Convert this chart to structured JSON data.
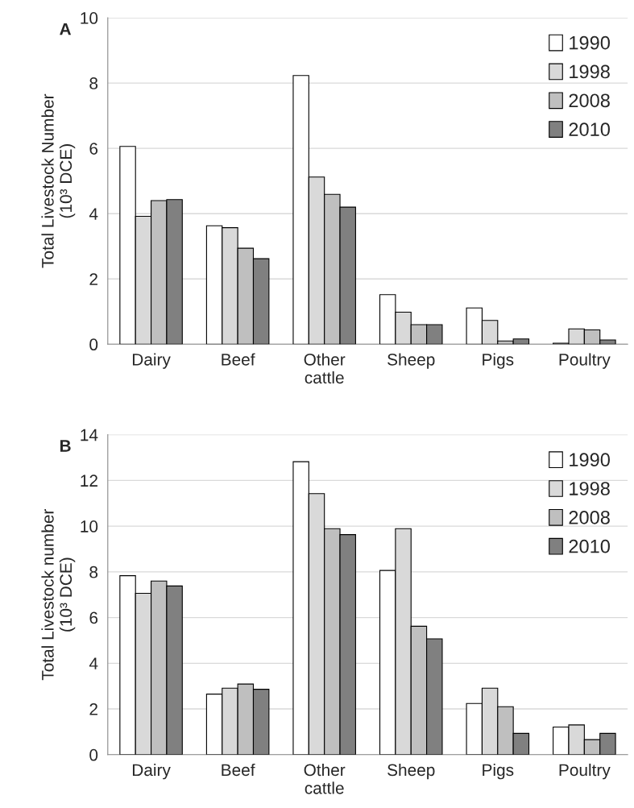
{
  "chart_data": [
    {
      "type": "bar",
      "title": "A",
      "ylabel": "Total Livestock Number\n(10³ DCE)",
      "categories": [
        "Dairy",
        "Beef",
        "Other\ncattle",
        "Sheep",
        "Pigs",
        "Poultry"
      ],
      "series": [
        {
          "name": "1990",
          "color": "#ffffff",
          "values": [
            6.06,
            3.63,
            8.23,
            1.52,
            1.11,
            0.03
          ]
        },
        {
          "name": "1998",
          "color": "#d9d9d9",
          "values": [
            3.92,
            3.57,
            5.12,
            0.98,
            0.73,
            0.47
          ]
        },
        {
          "name": "2008",
          "color": "#bfbfbf",
          "values": [
            4.4,
            2.94,
            4.59,
            0.6,
            0.1,
            0.44
          ]
        },
        {
          "name": "2010",
          "color": "#808080",
          "values": [
            4.43,
            2.62,
            4.2,
            0.6,
            0.16,
            0.13
          ]
        }
      ],
      "ylim": [
        0,
        10
      ],
      "yticks": [
        0,
        2,
        4,
        6,
        8,
        10
      ],
      "grid": "y",
      "legend": "top right"
    },
    {
      "type": "bar",
      "title": "B",
      "ylabel": "Total Livestock number\n(10³ DCE)",
      "categories": [
        "Dairy",
        "Beef",
        "Other\ncattle",
        "Sheep",
        "Pigs",
        "Poultry"
      ],
      "series": [
        {
          "name": "1990",
          "color": "#ffffff",
          "values": [
            7.83,
            2.65,
            12.82,
            8.06,
            2.24,
            1.21
          ]
        },
        {
          "name": "1998",
          "color": "#d9d9d9",
          "values": [
            7.06,
            2.91,
            11.42,
            9.89,
            2.91,
            1.3
          ]
        },
        {
          "name": "2008",
          "color": "#bfbfbf",
          "values": [
            7.6,
            3.09,
            9.89,
            5.62,
            2.1,
            0.66
          ]
        },
        {
          "name": "2010",
          "color": "#808080",
          "values": [
            7.38,
            2.86,
            9.63,
            5.07,
            0.93,
            0.93
          ]
        }
      ],
      "ylim": [
        0,
        14
      ],
      "yticks": [
        0,
        2,
        4,
        6,
        8,
        10,
        12,
        14
      ],
      "grid": "y",
      "legend": "top right"
    }
  ]
}
